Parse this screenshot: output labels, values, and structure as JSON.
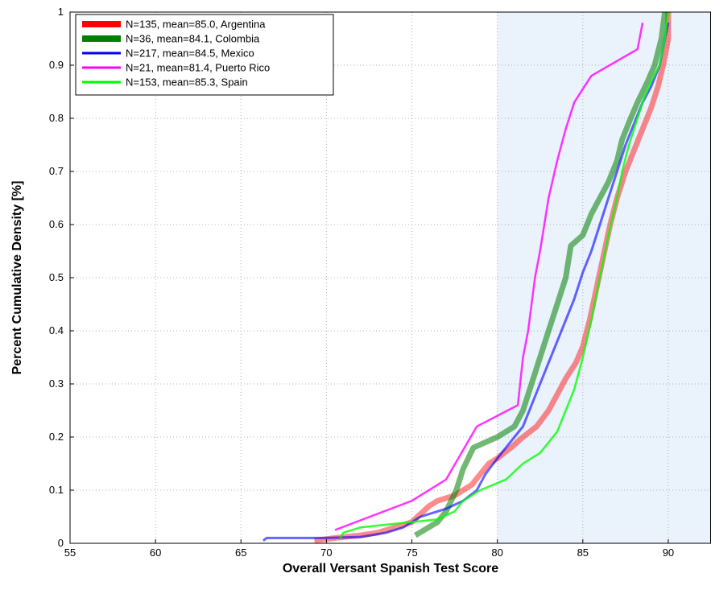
{
  "chart_data": {
    "type": "line",
    "title": "",
    "xlabel": "Overall Versant Spanish Test Score",
    "ylabel": "Percent Cumulative Density [%]",
    "xlim": [
      55,
      92.5
    ],
    "ylim": [
      0,
      1
    ],
    "xticks": [
      55,
      60,
      65,
      70,
      75,
      80,
      85,
      90
    ],
    "yticks": [
      0,
      0.1,
      0.2,
      0.3,
      0.4,
      0.5,
      0.6,
      0.7,
      0.8,
      0.9,
      1
    ],
    "xtick_labels": [
      "55",
      "60",
      "65",
      "70",
      "75",
      "80",
      "85",
      "90"
    ],
    "ytick_labels": [
      "0",
      "0.1",
      "0.2",
      "0.3",
      "0.4",
      "0.5",
      "0.6",
      "0.7",
      "0.8",
      "0.9",
      "1"
    ],
    "grid": true,
    "legend_position": "top-left",
    "shaded_region": {
      "x_from": 80,
      "x_to": 92.5,
      "color": "#eaf2fc"
    },
    "series": [
      {
        "name": "N=135, mean=85.0, Argentina",
        "color": "#ff0000",
        "points": [
          [
            69.3,
            0.005
          ],
          [
            70.5,
            0.01
          ],
          [
            72.0,
            0.015
          ],
          [
            73.0,
            0.02
          ],
          [
            74.0,
            0.03
          ],
          [
            75.0,
            0.04
          ],
          [
            75.5,
            0.055
          ],
          [
            76.0,
            0.07
          ],
          [
            76.5,
            0.08
          ],
          [
            77.5,
            0.09
          ],
          [
            78.5,
            0.11
          ],
          [
            79.0,
            0.13
          ],
          [
            79.5,
            0.15
          ],
          [
            80.0,
            0.16
          ],
          [
            80.8,
            0.18
          ],
          [
            81.5,
            0.2
          ],
          [
            82.3,
            0.22
          ],
          [
            83.0,
            0.25
          ],
          [
            83.5,
            0.28
          ],
          [
            84.0,
            0.31
          ],
          [
            84.6,
            0.34
          ],
          [
            85.0,
            0.37
          ],
          [
            85.4,
            0.42
          ],
          [
            85.8,
            0.48
          ],
          [
            86.2,
            0.54
          ],
          [
            86.6,
            0.6
          ],
          [
            87.0,
            0.65
          ],
          [
            87.5,
            0.7
          ],
          [
            88.0,
            0.74
          ],
          [
            88.5,
            0.78
          ],
          [
            89.0,
            0.82
          ],
          [
            89.4,
            0.86
          ],
          [
            89.7,
            0.9
          ],
          [
            90.0,
            0.95
          ],
          [
            90.0,
            1.0
          ]
        ]
      },
      {
        "name": "N=36, mean=84.1, Colombia",
        "color": "#008000",
        "points": [
          [
            75.2,
            0.015
          ],
          [
            76.5,
            0.04
          ],
          [
            77.0,
            0.06
          ],
          [
            77.6,
            0.1
          ],
          [
            78.0,
            0.14
          ],
          [
            78.6,
            0.18
          ],
          [
            80.0,
            0.2
          ],
          [
            81.0,
            0.22
          ],
          [
            81.5,
            0.25
          ],
          [
            82.0,
            0.3
          ],
          [
            82.5,
            0.35
          ],
          [
            83.0,
            0.4
          ],
          [
            83.5,
            0.45
          ],
          [
            84.0,
            0.5
          ],
          [
            84.3,
            0.56
          ],
          [
            85.0,
            0.58
          ],
          [
            85.5,
            0.62
          ],
          [
            86.0,
            0.65
          ],
          [
            86.5,
            0.68
          ],
          [
            87.0,
            0.72
          ],
          [
            87.3,
            0.76
          ],
          [
            87.8,
            0.8
          ],
          [
            88.2,
            0.83
          ],
          [
            88.8,
            0.87
          ],
          [
            89.2,
            0.9
          ],
          [
            89.6,
            0.95
          ],
          [
            89.8,
            1.0
          ]
        ]
      },
      {
        "name": "N=217, mean=84.5, Mexico",
        "color": "#0000ff",
        "points": [
          [
            66.3,
            0.005
          ],
          [
            66.5,
            0.01
          ],
          [
            68.0,
            0.01
          ],
          [
            70.0,
            0.01
          ],
          [
            72.0,
            0.012
          ],
          [
            73.5,
            0.02
          ],
          [
            74.5,
            0.03
          ],
          [
            75.0,
            0.04
          ],
          [
            75.5,
            0.05
          ],
          [
            76.0,
            0.055
          ],
          [
            77.0,
            0.065
          ],
          [
            78.0,
            0.08
          ],
          [
            78.8,
            0.1
          ],
          [
            79.3,
            0.13
          ],
          [
            80.0,
            0.16
          ],
          [
            80.5,
            0.18
          ],
          [
            81.0,
            0.2
          ],
          [
            81.5,
            0.22
          ],
          [
            82.0,
            0.26
          ],
          [
            82.5,
            0.3
          ],
          [
            83.0,
            0.34
          ],
          [
            83.5,
            0.38
          ],
          [
            84.0,
            0.42
          ],
          [
            84.5,
            0.46
          ],
          [
            85.0,
            0.51
          ],
          [
            85.5,
            0.55
          ],
          [
            86.0,
            0.6
          ],
          [
            86.5,
            0.65
          ],
          [
            87.0,
            0.7
          ],
          [
            87.5,
            0.75
          ],
          [
            88.0,
            0.79
          ],
          [
            88.5,
            0.83
          ],
          [
            89.0,
            0.86
          ],
          [
            89.5,
            0.9
          ],
          [
            89.8,
            0.95
          ],
          [
            90.0,
            0.98
          ]
        ]
      },
      {
        "name": "N=21, mean=81.4, Puerto Rico",
        "color": "#ff00ff",
        "points": [
          [
            70.5,
            0.025
          ],
          [
            75.0,
            0.08
          ],
          [
            77.0,
            0.12
          ],
          [
            78.8,
            0.22
          ],
          [
            80.0,
            0.24
          ],
          [
            81.2,
            0.26
          ],
          [
            81.5,
            0.35
          ],
          [
            81.8,
            0.4
          ],
          [
            82.2,
            0.5
          ],
          [
            82.5,
            0.55
          ],
          [
            83.0,
            0.65
          ],
          [
            83.5,
            0.72
          ],
          [
            84.0,
            0.78
          ],
          [
            84.5,
            0.83
          ],
          [
            85.5,
            0.88
          ],
          [
            88.2,
            0.93
          ],
          [
            88.5,
            0.98
          ]
        ]
      },
      {
        "name": "N=153, mean=85.3, Spain",
        "color": "#00ff00",
        "points": [
          [
            70.8,
            0.01
          ],
          [
            71.0,
            0.02
          ],
          [
            72.0,
            0.03
          ],
          [
            73.5,
            0.035
          ],
          [
            75.0,
            0.04
          ],
          [
            76.5,
            0.045
          ],
          [
            77.5,
            0.06
          ],
          [
            78.0,
            0.08
          ],
          [
            79.0,
            0.1
          ],
          [
            80.5,
            0.12
          ],
          [
            81.5,
            0.15
          ],
          [
            82.5,
            0.17
          ],
          [
            83.5,
            0.21
          ],
          [
            84.0,
            0.25
          ],
          [
            84.5,
            0.29
          ],
          [
            85.0,
            0.35
          ],
          [
            85.5,
            0.42
          ],
          [
            86.0,
            0.5
          ],
          [
            86.5,
            0.58
          ],
          [
            87.0,
            0.65
          ],
          [
            87.3,
            0.7
          ],
          [
            87.7,
            0.75
          ],
          [
            88.2,
            0.8
          ],
          [
            88.6,
            0.84
          ],
          [
            89.0,
            0.87
          ],
          [
            89.5,
            0.9
          ],
          [
            89.8,
            0.95
          ],
          [
            90.0,
            1.0
          ]
        ]
      }
    ]
  }
}
